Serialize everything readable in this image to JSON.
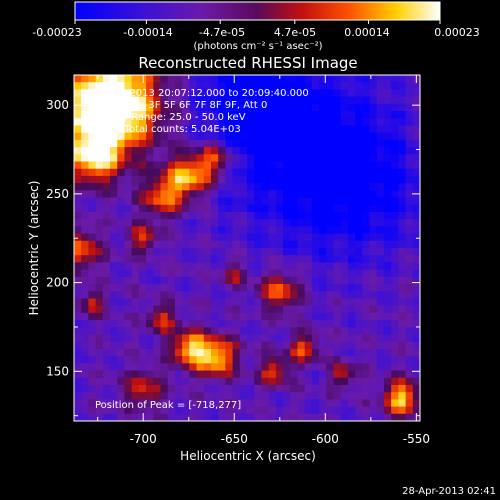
{
  "chart_data": {
    "type": "heatmap",
    "title": "Reconstructed RHESSI Image",
    "xlabel": "Heliocentric X (arcsec)",
    "ylabel": "Heliocentric Y (arcsec)",
    "xlim": [
      -738,
      -548
    ],
    "ylim": [
      122,
      317
    ],
    "x_ticks": [
      -700,
      -650,
      -600,
      -550
    ],
    "y_ticks": [
      150,
      200,
      250,
      300
    ],
    "annotations": {
      "time_range": "27-Apr-2013 20:07:12.000 to 20:09:40.000",
      "detectors": "Detectors: 3F 5F 6F 7F 8F 9F, Att 0",
      "energy_range": "Energy Range: 25.0 - 50.0 keV",
      "clean_counts": "Clean    Total counts: 5.04E+03",
      "peak_position": "Position of Peak = [-718,277]"
    },
    "colorbar": {
      "colormap": "blue-purple-red-yellow-white",
      "min": -0.00023,
      "max": 0.00023,
      "tick_labels": [
        "-0.00023",
        "-0.00014",
        "-4.7e-05",
        "4.7e-05",
        "0.00014",
        "0.00023"
      ],
      "tick_values": [
        -0.00023,
        -0.00014,
        -4.7e-05,
        4.7e-05,
        0.00014,
        0.00023
      ],
      "label": "(photons cm⁻² s⁻¹ asec⁻²)"
    },
    "peak": {
      "x": -718,
      "y": 277
    },
    "sources": [
      {
        "x": -718,
        "y": 300,
        "sigma": 18,
        "amp": 1.0
      },
      {
        "x": -727,
        "y": 270,
        "sigma": 10,
        "amp": 0.55
      },
      {
        "x": -675,
        "y": 260,
        "sigma": 9,
        "amp": 0.6
      },
      {
        "x": -660,
        "y": 270,
        "sigma": 7,
        "amp": 0.45
      },
      {
        "x": -690,
        "y": 248,
        "sigma": 8,
        "amp": 0.45
      },
      {
        "x": -735,
        "y": 218,
        "sigma": 8,
        "amp": 0.45
      },
      {
        "x": -700,
        "y": 225,
        "sigma": 6,
        "amp": 0.35
      },
      {
        "x": -690,
        "y": 180,
        "sigma": 6,
        "amp": 0.35
      },
      {
        "x": -728,
        "y": 188,
        "sigma": 5,
        "amp": 0.35
      },
      {
        "x": -700,
        "y": 140,
        "sigma": 8,
        "amp": 0.35
      },
      {
        "x": -660,
        "y": 158,
        "sigma": 8,
        "amp": 0.6
      },
      {
        "x": -675,
        "y": 163,
        "sigma": 7,
        "amp": 0.55
      },
      {
        "x": -625,
        "y": 195,
        "sigma": 8,
        "amp": 0.45
      },
      {
        "x": -612,
        "y": 163,
        "sigma": 6,
        "amp": 0.4
      },
      {
        "x": -628,
        "y": 150,
        "sigma": 6,
        "amp": 0.4
      },
      {
        "x": -590,
        "y": 148,
        "sigma": 5,
        "amp": 0.35
      },
      {
        "x": -558,
        "y": 135,
        "sigma": 7,
        "amp": 0.6
      },
      {
        "x": -650,
        "y": 205,
        "sigma": 5,
        "amp": 0.3
      }
    ],
    "dark_regions": [
      {
        "x": -610,
        "y": 275,
        "sigma": 35,
        "amp": 0.35
      },
      {
        "x": -640,
        "y": 305,
        "sigma": 20,
        "amp": 0.3
      },
      {
        "x": -580,
        "y": 250,
        "sigma": 25,
        "amp": 0.2
      }
    ]
  },
  "footer": {
    "timestamp": "28-Apr-2013 02:41"
  }
}
